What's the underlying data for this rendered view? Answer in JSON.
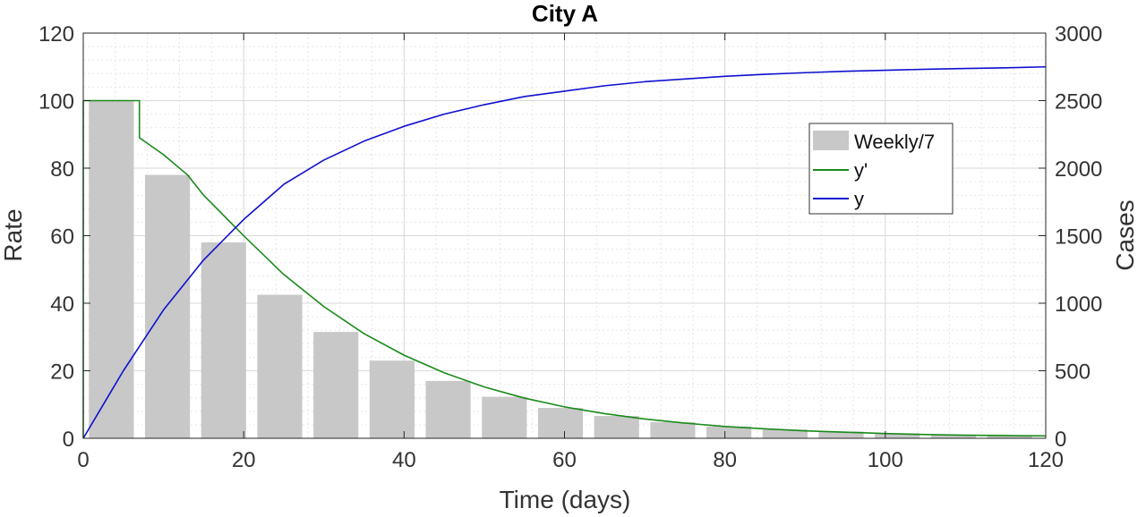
{
  "chart_data": {
    "type": "bar",
    "title": "City A",
    "xlabel": "Time (days)",
    "ylabel_left": "Rate",
    "ylabel_right": "Cases",
    "xlim": [
      0,
      120
    ],
    "ylim_left": [
      0,
      120
    ],
    "ylim_right": [
      0,
      3000
    ],
    "xticks": [
      "0",
      "20",
      "40",
      "60",
      "80",
      "100",
      "120"
    ],
    "yticks_left": [
      "0",
      "20",
      "40",
      "60",
      "80",
      "100",
      "120"
    ],
    "yticks_right": [
      "0",
      "500",
      "1000",
      "1500",
      "2000",
      "2500",
      "3000"
    ],
    "grid": true,
    "minor_grid": true,
    "legend_position": "upper-right",
    "bars": {
      "name": "Weekly/7",
      "color": "#c8c8c8",
      "x": [
        3.5,
        10.5,
        17.5,
        24.5,
        31.5,
        38.5,
        45.5,
        52.5,
        59.5,
        66.5,
        73.5,
        80.5,
        87.5,
        94.5,
        101.5,
        108.5,
        115.5
      ],
      "values": [
        100,
        78,
        58,
        42.5,
        31.5,
        23,
        17,
        12.3,
        9,
        6.6,
        4.8,
        3.5,
        2.6,
        2.0,
        1.5,
        1.1,
        0.8
      ]
    },
    "series": [
      {
        "name": "y'",
        "axis": "left",
        "color": "#1a8a1a",
        "x": [
          0,
          0,
          7,
          7,
          10,
          13,
          15,
          20,
          25,
          30,
          35,
          40,
          45,
          50,
          55,
          60,
          65,
          70,
          75,
          80,
          85,
          90,
          95,
          100,
          105,
          110,
          115,
          120
        ],
        "y": [
          0,
          100,
          100,
          89,
          84,
          78,
          72,
          60,
          48.5,
          39,
          31,
          24.6,
          19.4,
          15.2,
          11.9,
          9.3,
          7.3,
          5.7,
          4.5,
          3.5,
          2.8,
          2.2,
          1.8,
          1.4,
          1.1,
          0.9,
          0.8,
          0.7
        ]
      },
      {
        "name": "y",
        "axis": "right",
        "color": "#1010d0",
        "x": [
          0,
          5,
          10,
          15,
          20,
          25,
          30,
          35,
          40,
          45,
          50,
          55,
          60,
          65,
          70,
          75,
          80,
          85,
          90,
          95,
          100,
          105,
          110,
          115,
          120
        ],
        "y": [
          0,
          500,
          950,
          1320,
          1620,
          1880,
          2060,
          2200,
          2310,
          2400,
          2470,
          2530,
          2570,
          2610,
          2640,
          2660,
          2680,
          2695,
          2707,
          2717,
          2725,
          2732,
          2738,
          2743,
          2750
        ]
      }
    ]
  }
}
